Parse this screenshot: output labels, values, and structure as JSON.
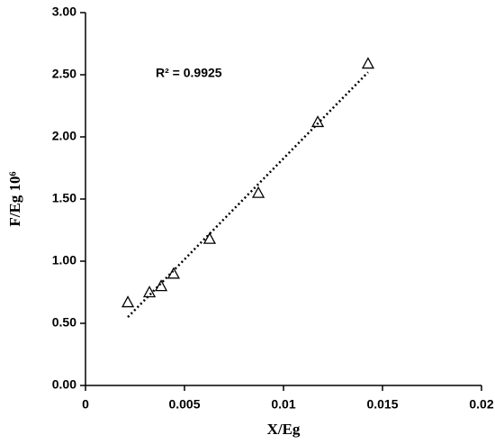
{
  "chart_data": {
    "type": "scatter",
    "xlabel": "X/Eg",
    "ylabel": "F/Eg 10⁶",
    "annotation": "R² = 0.9925",
    "series": [
      {
        "color": "#000000",
        "x": [
          0.00214,
          0.00323,
          0.00382,
          0.00445,
          0.00627,
          0.00873,
          0.01173,
          0.01427
        ],
        "values": [
          0.67,
          0.75,
          0.8,
          0.9,
          1.18,
          1.55,
          2.12,
          2.59
        ]
      }
    ],
    "trendline": {
      "x": [
        0.00214,
        0.01427
      ],
      "y": [
        0.55,
        2.52
      ],
      "color": "#000000"
    },
    "xlim": [
      0,
      0.02
    ],
    "xticks": [
      0,
      0.005,
      0.01,
      0.015,
      0.02
    ],
    "ylim": [
      0,
      3
    ],
    "yticks": [
      {
        "value": 0,
        "label": "0.00"
      },
      {
        "value": 0.5,
        "label": "0.50"
      },
      {
        "value": 1,
        "label": "1.00"
      },
      {
        "value": 1.5,
        "label": "1.50"
      },
      {
        "value": 2,
        "label": "2.00"
      },
      {
        "value": 2.5,
        "label": "2.50"
      },
      {
        "value": 3,
        "label": "3.00"
      }
    ],
    "grid": false
  }
}
